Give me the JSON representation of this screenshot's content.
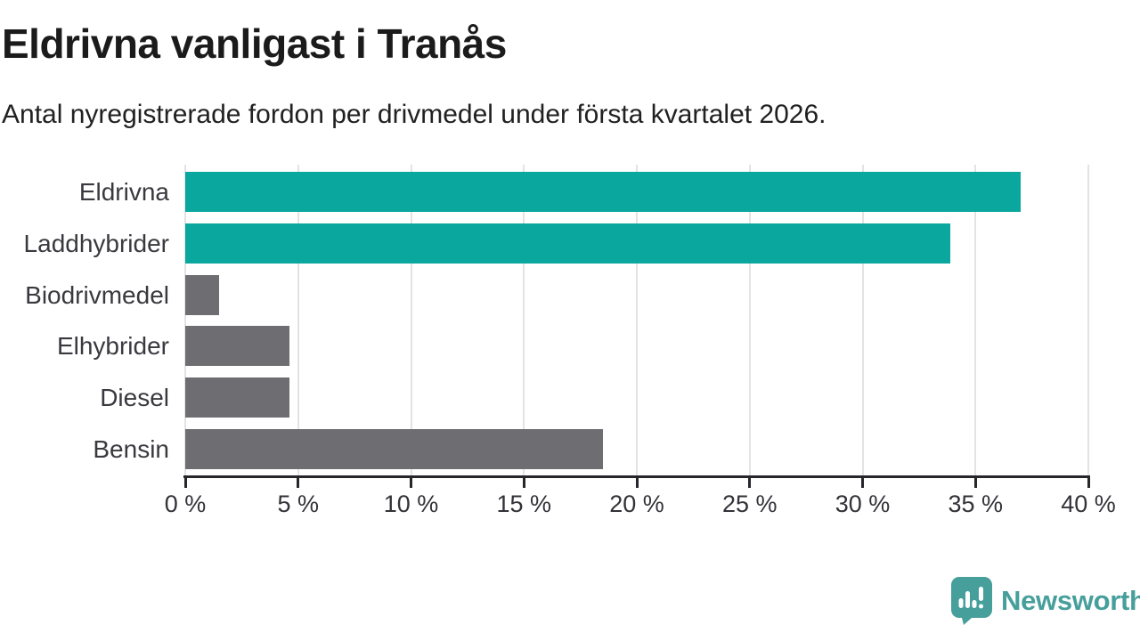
{
  "header": {
    "title": "Eldrivna vanligast i Tranås",
    "subtitle": "Antal nyregistrerade fordon per drivmedel under första kvartalet 2026."
  },
  "chart_data": {
    "type": "bar",
    "orientation": "horizontal",
    "title": "Eldrivna vanligast i Tranås",
    "subtitle": "Antal nyregistrerade fordon per drivmedel under första kvartalet 2026.",
    "categories": [
      "Eldrivna",
      "Laddhybrider",
      "Biodrivmedel",
      "Elhybrider",
      "Diesel",
      "Bensin"
    ],
    "values": [
      37.0,
      33.9,
      1.5,
      4.6,
      4.6,
      18.5
    ],
    "unit": "%",
    "bar_colors": [
      "#09a79e",
      "#09a79e",
      "#6e6d72",
      "#6e6d72",
      "#6e6d72",
      "#6e6d72"
    ],
    "highlight_color": "#09a79e",
    "default_color": "#6e6d72",
    "xlabel": "",
    "ylabel": "",
    "xlim": [
      0,
      40
    ],
    "xticks": [
      0,
      5,
      10,
      15,
      20,
      25,
      30,
      35,
      40
    ],
    "xtick_labels": [
      "0 %",
      "5 %",
      "10 %",
      "15 %",
      "20 %",
      "25 %",
      "30 %",
      "35 %",
      "40 %"
    ],
    "grid": "vertical",
    "legend": "none"
  },
  "footer": {
    "brand": "Newsworthy",
    "brand_color": "#469f9b",
    "logo_icon": "bar-chart-speech-bubble-icon"
  }
}
